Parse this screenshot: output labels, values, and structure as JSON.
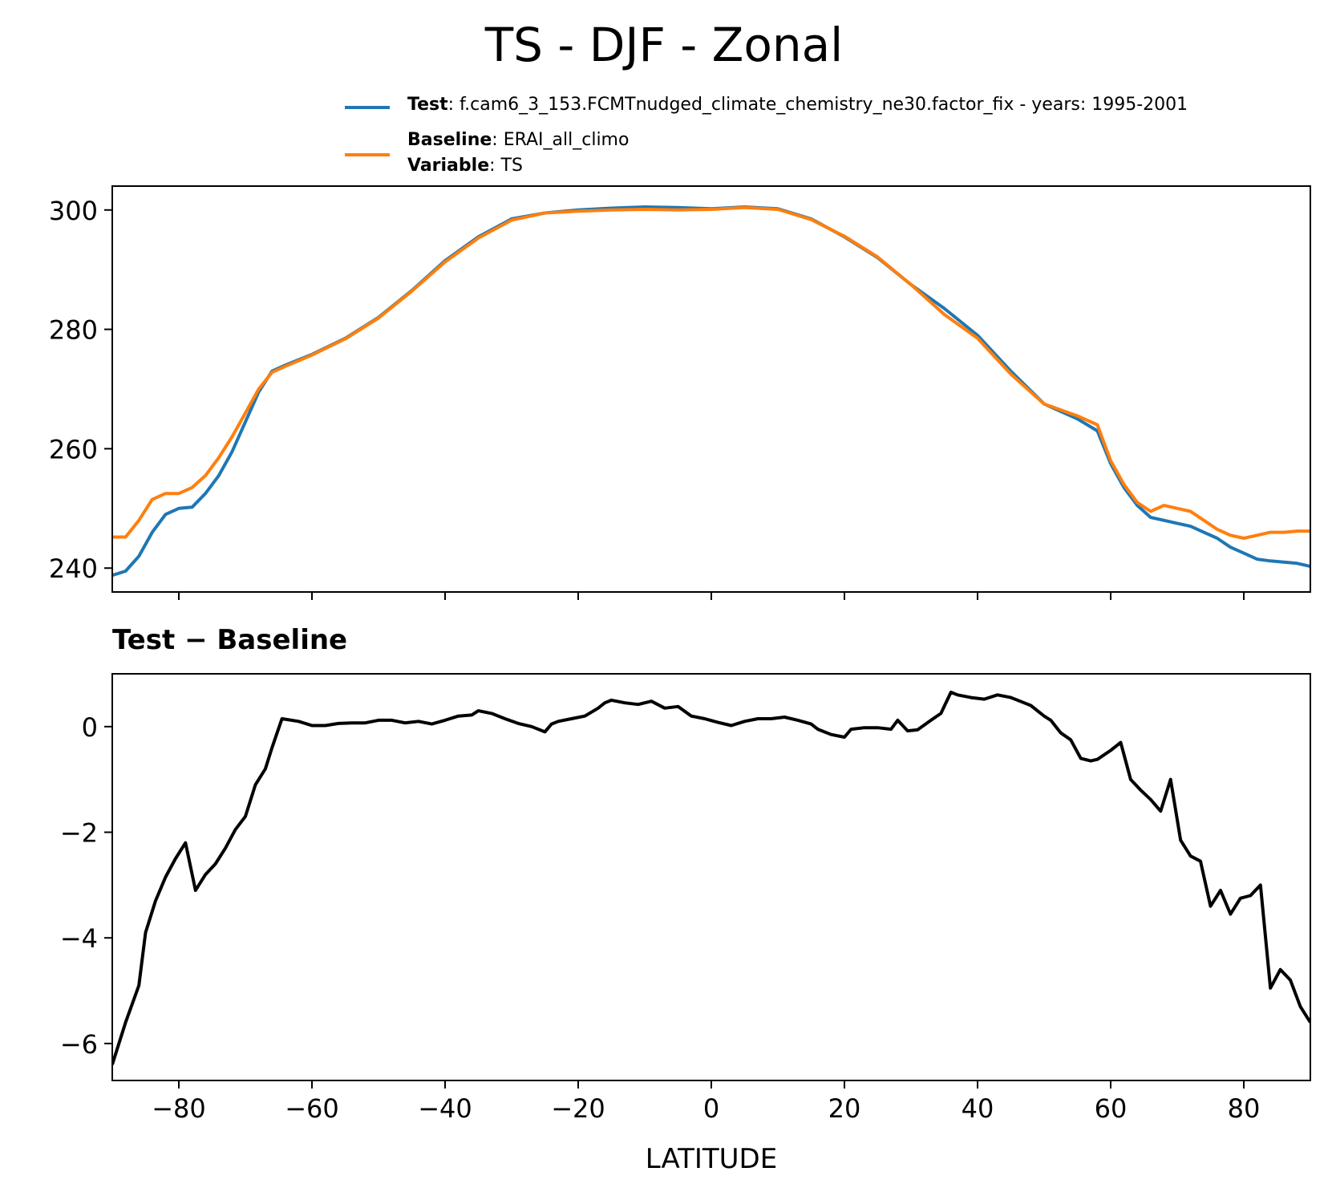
{
  "figure": {
    "title": "TS - DJF - Zonal",
    "legend": {
      "test_key": "Test",
      "test_value": ": f.cam6_3_153.FCMTnudged_climate_chemistry_ne30.factor_fix - years: 1995-2001",
      "baseline_key": "Baseline",
      "baseline_value": ": ERAI_all_climo",
      "variable_key": "Variable",
      "variable_value": ": TS"
    },
    "diff_title": "Test − Baseline",
    "xlabel": "LATITUDE",
    "colors": {
      "test": "#1f77b4",
      "baseline": "#ff7f0e",
      "diff": "#000000"
    }
  },
  "chart_data": [
    {
      "type": "line",
      "xlim": [
        -90,
        90
      ],
      "ylim": [
        236,
        304
      ],
      "yticks": [
        240,
        260,
        280,
        300
      ],
      "xticks": [
        -80,
        -60,
        -40,
        -20,
        0,
        20,
        40,
        60,
        80
      ],
      "show_xticklabels": false,
      "series": [
        {
          "name": "Test",
          "color": "#1f77b4",
          "x": [
            -90,
            -88,
            -86,
            -84,
            -82,
            -80,
            -78,
            -76,
            -74,
            -72,
            -70,
            -68,
            -66,
            -64,
            -60,
            -55,
            -50,
            -45,
            -40,
            -35,
            -30,
            -25,
            -20,
            -15,
            -10,
            -5,
            0,
            5,
            10,
            15,
            20,
            25,
            30,
            35,
            40,
            45,
            50,
            55,
            58,
            60,
            62,
            64,
            66,
            68,
            70,
            72,
            74,
            76,
            78,
            80,
            82,
            84,
            86,
            88,
            90
          ],
          "y": [
            238.8,
            239.5,
            242,
            246,
            249,
            250,
            250.2,
            252.5,
            255.5,
            259.5,
            264.5,
            269.5,
            273,
            274,
            275.8,
            278.5,
            282,
            286.5,
            291.5,
            295.5,
            298.5,
            299.5,
            300,
            300.3,
            300.5,
            300.4,
            300.2,
            300.5,
            300.2,
            298.5,
            295.5,
            292,
            287.5,
            283.5,
            279,
            273,
            267.5,
            265,
            263,
            257.5,
            253.5,
            250.5,
            248.5,
            248,
            247.5,
            247,
            246,
            245,
            243.5,
            242.5,
            241.5,
            241.2,
            241,
            240.8,
            240.3
          ]
        },
        {
          "name": "Baseline",
          "color": "#ff7f0e",
          "x": [
            -90,
            -88,
            -86,
            -84,
            -82,
            -80,
            -78,
            -76,
            -74,
            -72,
            -70,
            -68,
            -66,
            -64,
            -60,
            -55,
            -50,
            -45,
            -40,
            -35,
            -30,
            -25,
            -20,
            -15,
            -10,
            -5,
            0,
            5,
            10,
            15,
            20,
            25,
            30,
            35,
            40,
            45,
            50,
            55,
            58,
            60,
            62,
            64,
            66,
            68,
            70,
            72,
            74,
            76,
            78,
            80,
            82,
            84,
            86,
            88,
            90
          ],
          "y": [
            245.2,
            245.2,
            248,
            251.5,
            252.5,
            252.5,
            253.5,
            255.5,
            258.5,
            262,
            266,
            270,
            272.8,
            273.8,
            275.7,
            278.4,
            281.9,
            286.4,
            291.3,
            295.3,
            298.3,
            299.5,
            299.8,
            300,
            300.1,
            300,
            300.1,
            300.4,
            300.1,
            298.4,
            295.6,
            292.1,
            287.5,
            282.5,
            278.5,
            272.5,
            267.5,
            265.5,
            264,
            258,
            254,
            251,
            249.5,
            250.5,
            250,
            249.5,
            248,
            246.5,
            245.5,
            245,
            245.5,
            246,
            246,
            246.2,
            246.2
          ]
        }
      ]
    },
    {
      "type": "line",
      "title": "Test − Baseline",
      "xlabel": "LATITUDE",
      "xlim": [
        -90,
        90
      ],
      "ylim": [
        -6.7,
        1.0
      ],
      "yticks": [
        0,
        -2,
        -4,
        -6
      ],
      "xticks": [
        -80,
        -60,
        -40,
        -20,
        0,
        20,
        40,
        60,
        80
      ],
      "series": [
        {
          "color": "#000000",
          "x": [
            -90,
            -88,
            -86,
            -85,
            -83.5,
            -82,
            -80.5,
            -79,
            -77.5,
            -76,
            -74.5,
            -73,
            -71.5,
            -70,
            -68.5,
            -67,
            -66,
            -64.5,
            -62,
            -60,
            -58,
            -56,
            -54,
            -52,
            -50,
            -48,
            -46,
            -44,
            -42,
            -40,
            -38,
            -36,
            -35,
            -33,
            -31,
            -29,
            -27,
            -25,
            -24,
            -23,
            -21,
            -19,
            -17,
            -16,
            -15,
            -13,
            -11,
            -9,
            -7,
            -5,
            -3,
            -1,
            1,
            3,
            5,
            7,
            9,
            11,
            13,
            15,
            16,
            18,
            20,
            21,
            23,
            25,
            27,
            28,
            29.5,
            31,
            33,
            34.5,
            36,
            37,
            39,
            41,
            43,
            45,
            47,
            48,
            50,
            51,
            52.5,
            54,
            55.5,
            57,
            58,
            60,
            61.5,
            63,
            64.5,
            66,
            67.5,
            69,
            70.5,
            72,
            73.5,
            75,
            76.5,
            78,
            79.5,
            81,
            82.5,
            84,
            85.5,
            87,
            88.5,
            90
          ],
          "y": [
            -6.4,
            -5.6,
            -4.9,
            -3.9,
            -3.3,
            -2.85,
            -2.5,
            -2.2,
            -3.1,
            -2.8,
            -2.6,
            -2.3,
            -1.95,
            -1.7,
            -1.1,
            -0.8,
            -0.4,
            0.15,
            0.1,
            0.02,
            0.02,
            0.06,
            0.07,
            0.07,
            0.12,
            0.12,
            0.07,
            0.1,
            0.05,
            0.12,
            0.2,
            0.22,
            0.3,
            0.25,
            0.15,
            0.06,
            0.0,
            -0.1,
            0.05,
            0.1,
            0.15,
            0.2,
            0.35,
            0.45,
            0.5,
            0.45,
            0.42,
            0.48,
            0.35,
            0.38,
            0.2,
            0.15,
            0.08,
            0.02,
            0.1,
            0.15,
            0.15,
            0.18,
            0.12,
            0.05,
            -0.05,
            -0.15,
            -0.2,
            -0.05,
            -0.02,
            -0.02,
            -0.05,
            0.12,
            -0.08,
            -0.06,
            0.12,
            0.25,
            0.65,
            0.6,
            0.55,
            0.52,
            0.6,
            0.55,
            0.45,
            0.4,
            0.2,
            0.12,
            -0.12,
            -0.25,
            -0.6,
            -0.65,
            -0.62,
            -0.45,
            -0.3,
            -1.0,
            -1.2,
            -1.38,
            -1.6,
            -1.0,
            -2.15,
            -2.45,
            -2.55,
            -3.4,
            -3.1,
            -3.55,
            -3.25,
            -3.2,
            -3.0,
            -4.95,
            -4.6,
            -4.8,
            -5.3,
            -5.6
          ]
        }
      ]
    }
  ]
}
